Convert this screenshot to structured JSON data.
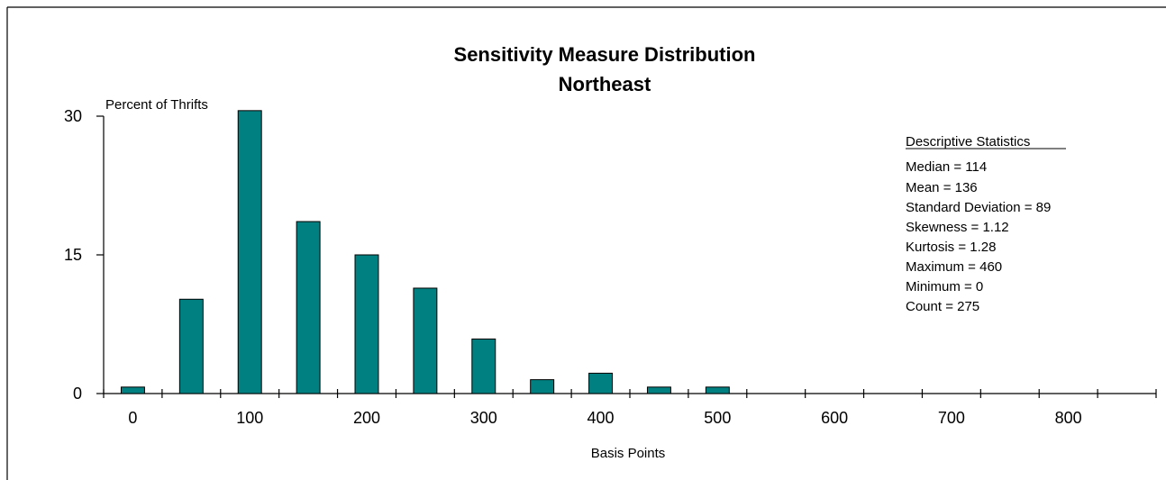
{
  "chart_data": {
    "type": "bar",
    "title": "Sensitivity Measure Distribution",
    "subtitle": "Northeast",
    "ylabel": "Percent of Thrifts",
    "xlabel": "Basis Points",
    "x": [
      0,
      50,
      100,
      150,
      200,
      250,
      300,
      350,
      400,
      450,
      500
    ],
    "values": [
      0.7,
      10.2,
      30.6,
      18.6,
      15.0,
      11.4,
      5.9,
      1.5,
      2.2,
      0.7,
      0.7
    ],
    "ylim": [
      0,
      30
    ],
    "xlim": [
      -25,
      875
    ],
    "y_ticks": [
      0,
      15,
      30
    ],
    "x_tick_labels": [
      0,
      100,
      200,
      300,
      400,
      500,
      600,
      700,
      800
    ],
    "grid": false,
    "bar_color": "#008080",
    "stats": {
      "heading": "Descriptive Statistics",
      "lines": [
        "Median = 114",
        "Mean = 136",
        "Standard Deviation = 89",
        "Skewness = 1.12",
        "Kurtosis = 1.28",
        "Maximum = 460",
        "Minimum = 0",
        "Count = 275"
      ]
    }
  }
}
